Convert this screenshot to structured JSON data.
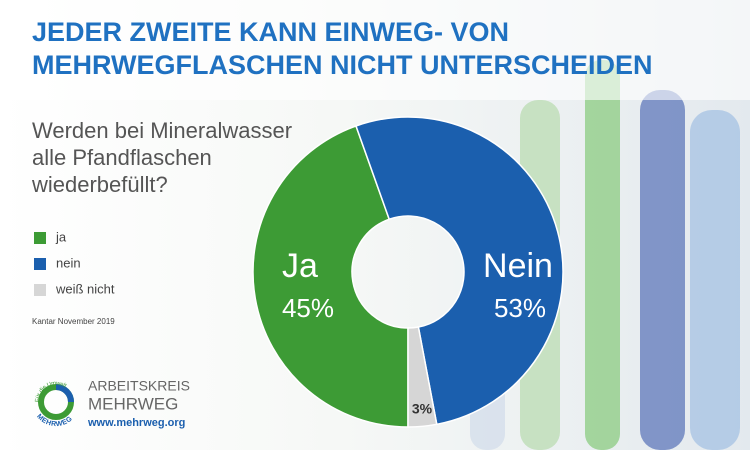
{
  "chart_data": {
    "type": "donut",
    "title_lines": [
      "JEDER ZWEITE KANN EINWEG- VON",
      "MEHRWEGFLASCHEN NICHT UNTERSCHEIDEN"
    ],
    "question_lines": [
      "Werden bei Mineralwasser",
      "alle Pfandflaschen",
      "wiederbefüllt?"
    ],
    "categories": [
      "ja",
      "nein",
      "weiß nicht"
    ],
    "slice_names": [
      "Ja",
      "Nein",
      null
    ],
    "values": [
      45,
      53,
      3
    ],
    "value_labels": [
      "45%",
      "53%",
      "3%"
    ],
    "colors": [
      "#3d9b35",
      "#1b5fae",
      "#d6d6d6"
    ],
    "source": "Kantar November 2019",
    "logo": {
      "line1": "ARBEITSKREIS",
      "line2": "MEHRWEG",
      "url": "www.mehrweg.org",
      "ring_top": "Für die Umwelt",
      "ring_bottom": "MEHRWEG"
    }
  }
}
